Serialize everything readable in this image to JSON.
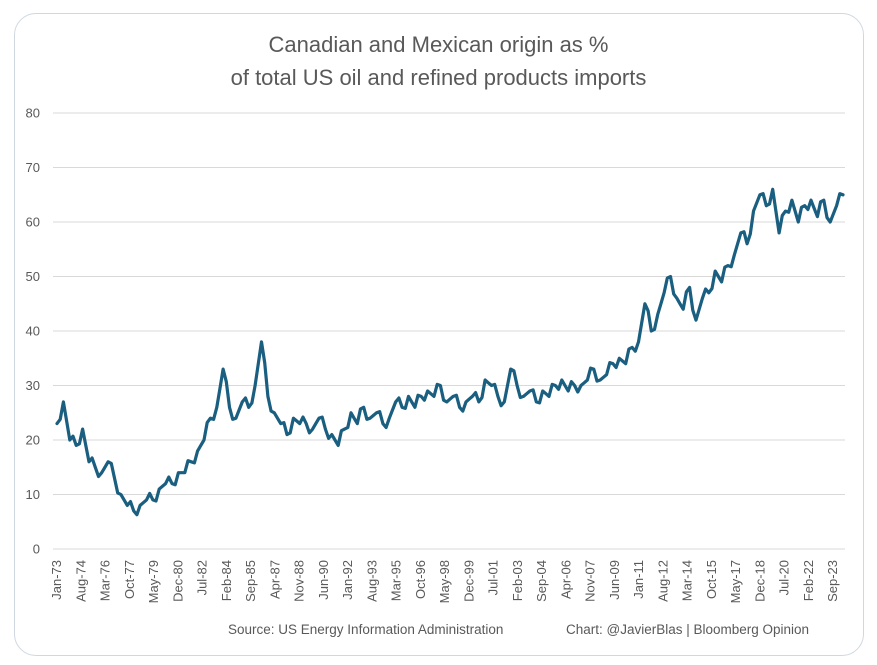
{
  "chart_data": {
    "type": "line",
    "title_line1": "Canadian and Mexican origin as %",
    "title_line2": "of total US oil and refined products imports",
    "xlabel": "",
    "ylabel": "",
    "ylim": [
      0,
      80
    ],
    "yticks": [
      0,
      10,
      20,
      30,
      40,
      50,
      60,
      70,
      80
    ],
    "grid": true,
    "legend": "none",
    "line_color": "#1a5e80",
    "x_start": "Jan-73",
    "x_step_months": 6,
    "xtick_labels": [
      "Jan-73",
      "Aug-74",
      "Mar-76",
      "Oct-77",
      "May-79",
      "Dec-80",
      "Jul-82",
      "Feb-84",
      "Sep-85",
      "Apr-87",
      "Nov-88",
      "Jun-90",
      "Jan-92",
      "Aug-93",
      "Mar-95",
      "Oct-96",
      "May-98",
      "Dec-99",
      "Jul-01",
      "Feb-03",
      "Sep-04",
      "Apr-06",
      "Nov-07",
      "Jun-09",
      "Jan-11",
      "Aug-12",
      "Mar-14",
      "Oct-15",
      "May-17",
      "Dec-18",
      "Jul-20",
      "Feb-22",
      "Sep-23"
    ],
    "series": [
      {
        "name": "Canada + Mexico share of US imports (%)",
        "values": [
          23,
          27,
          20,
          19,
          22,
          16,
          15,
          14,
          16,
          13,
          10,
          8,
          7,
          8,
          9,
          9,
          11,
          12,
          12,
          14,
          14,
          16,
          18,
          20,
          24,
          26,
          33,
          26,
          24,
          27,
          26,
          30,
          38,
          28,
          25,
          23,
          21,
          24,
          23,
          23,
          22,
          24,
          22,
          21,
          19,
          22,
          25,
          23,
          26,
          24,
          25,
          23,
          24,
          27,
          26,
          28,
          26,
          28,
          29,
          28,
          30,
          27,
          28,
          26,
          27,
          28,
          27,
          31,
          30,
          28,
          27,
          33,
          30,
          28,
          29,
          27,
          29,
          28,
          30,
          31,
          29,
          30,
          30,
          31,
          33,
          31,
          32,
          34,
          35,
          34,
          37,
          38,
          45,
          40,
          43,
          47,
          50,
          46,
          44,
          48,
          42,
          46,
          47,
          51,
          49,
          52,
          54,
          58,
          56,
          62,
          65,
          63,
          66,
          58,
          62,
          64,
          60,
          63,
          64,
          61,
          64,
          60,
          63,
          65
        ]
      }
    ]
  },
  "footer": {
    "source": "Source: US Energy Information Administration",
    "credit": "Chart: @JavierBlas | Bloomberg Opinion"
  }
}
